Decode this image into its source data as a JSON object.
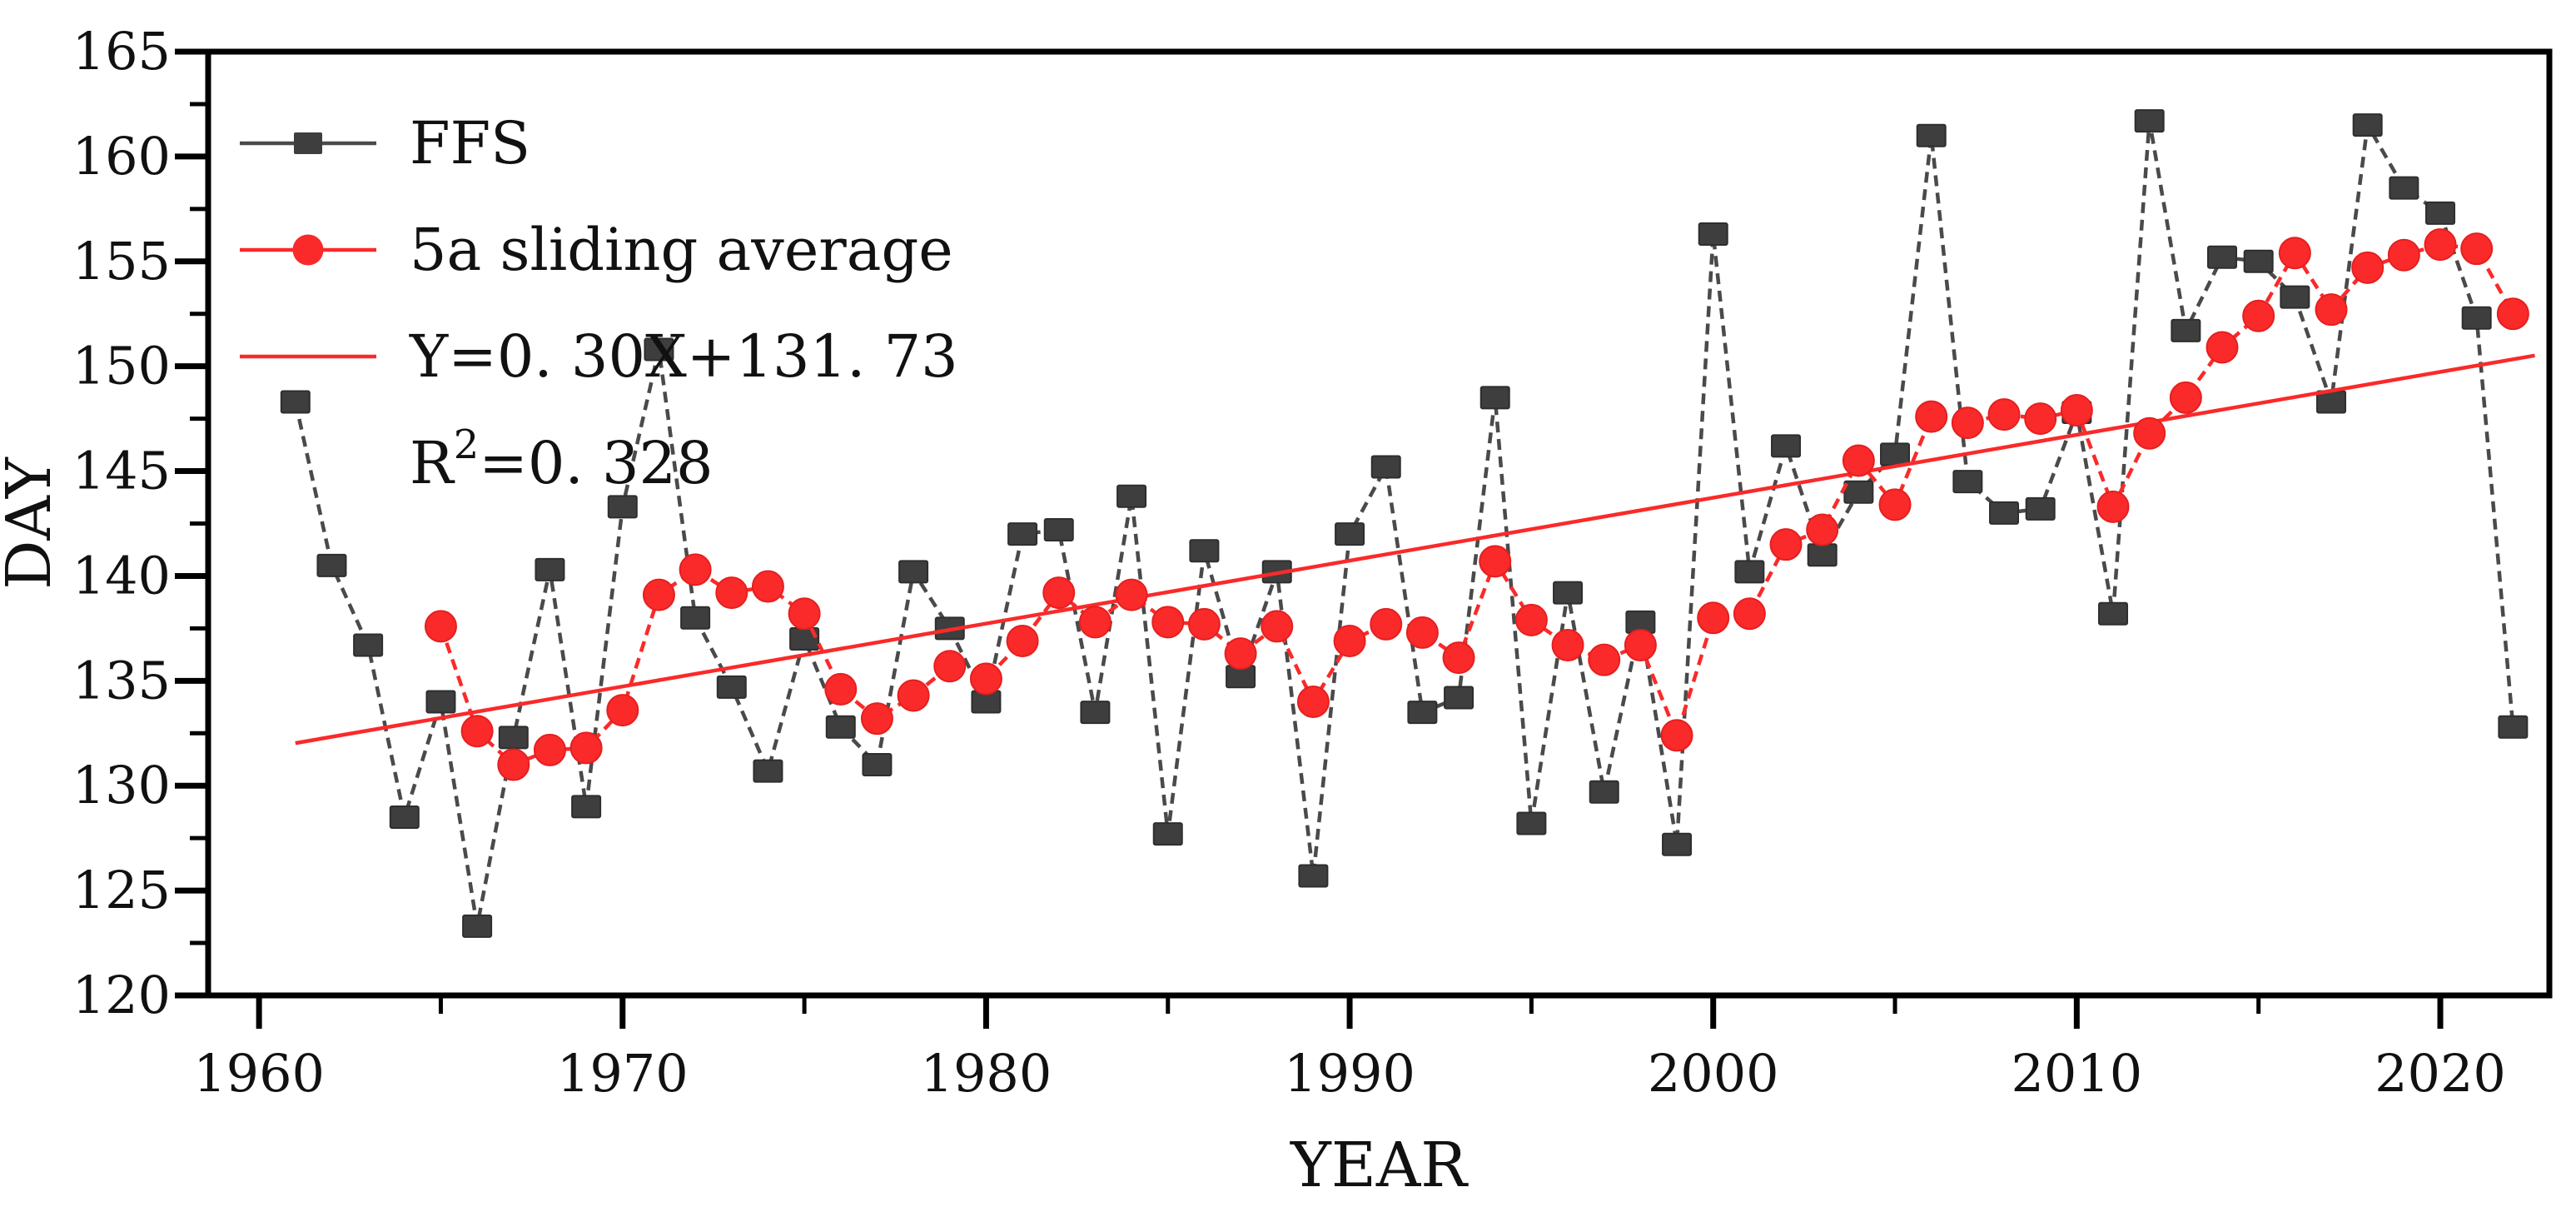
{
  "chart_data": {
    "type": "line",
    "title": "",
    "xlabel": "YEAR",
    "ylabel": "DAY",
    "xlim": [
      1958.6,
      2023.0
    ],
    "ylim": [
      120,
      165
    ],
    "grid": false,
    "legend_position": "upper-left",
    "x_major_ticks": [
      1960,
      1970,
      1980,
      1990,
      2000,
      2010,
      2020
    ],
    "x_minor_ticks": [
      1965,
      1975,
      1985,
      1995,
      2005,
      2015
    ],
    "y_major_ticks": [
      120,
      125,
      130,
      135,
      140,
      145,
      150,
      155,
      160,
      165
    ],
    "y_minor_ticks": [
      122.5,
      127.5,
      132.5,
      137.5,
      142.5,
      147.5,
      152.5,
      157.5,
      162.5
    ],
    "colors": {
      "ffs_marker": "#3e3e3e",
      "ffs_line": "#4a4a4a",
      "red": "#fa2a2a",
      "axis": "#000000",
      "text": "#111111"
    },
    "series": [
      {
        "name": "FFS",
        "kind": "line-marker",
        "marker": "square",
        "x": [
          1961,
          1962,
          1963,
          1964,
          1965,
          1966,
          1967,
          1968,
          1969,
          1970,
          1971,
          1972,
          1973,
          1974,
          1975,
          1976,
          1977,
          1978,
          1979,
          1980,
          1981,
          1982,
          1983,
          1984,
          1985,
          1986,
          1987,
          1988,
          1989,
          1990,
          1991,
          1992,
          1993,
          1994,
          1995,
          1996,
          1997,
          1998,
          1999,
          2000,
          2001,
          2002,
          2003,
          2004,
          2005,
          2006,
          2007,
          2008,
          2009,
          2010,
          2011,
          2012,
          2013,
          2014,
          2015,
          2016,
          2017,
          2018,
          2019,
          2020,
          2021,
          2022
        ],
        "values": [
          148.3,
          140.5,
          136.7,
          128.5,
          134.0,
          123.3,
          132.3,
          140.3,
          129.0,
          143.3,
          150.8,
          138.0,
          134.7,
          130.7,
          137.0,
          132.8,
          131.0,
          140.2,
          137.5,
          134.0,
          142.0,
          142.2,
          133.5,
          143.8,
          127.7,
          141.2,
          135.2,
          140.2,
          125.7,
          142.0,
          145.2,
          133.5,
          134.2,
          148.5,
          128.2,
          139.2,
          129.7,
          137.8,
          127.2,
          156.3,
          140.2,
          146.2,
          141.0,
          144.0,
          145.8,
          161.0,
          144.5,
          143.0,
          143.2,
          147.8,
          138.2,
          161.7,
          151.7,
          155.2,
          155.0,
          153.3,
          148.3,
          161.5,
          158.5,
          157.3,
          152.3,
          132.8
        ]
      },
      {
        "name": "5a sliding average",
        "kind": "line-marker",
        "marker": "circle",
        "x": [
          1965,
          1966,
          1967,
          1968,
          1969,
          1970,
          1971,
          1972,
          1973,
          1974,
          1975,
          1976,
          1977,
          1978,
          1979,
          1980,
          1981,
          1982,
          1983,
          1984,
          1985,
          1986,
          1987,
          1988,
          1989,
          1990,
          1991,
          1992,
          1993,
          1994,
          1995,
          1996,
          1997,
          1998,
          1999,
          2000,
          2001,
          2002,
          2003,
          2004,
          2005,
          2006,
          2007,
          2008,
          2009,
          2010,
          2011,
          2012,
          2013,
          2014,
          2015,
          2016,
          2017,
          2018,
          2019,
          2020,
          2021,
          2022
        ],
        "values": [
          137.6,
          132.6,
          131.0,
          131.7,
          131.8,
          133.6,
          139.1,
          140.3,
          139.2,
          139.5,
          138.2,
          134.6,
          133.2,
          134.3,
          135.7,
          135.1,
          136.9,
          139.2,
          137.8,
          139.1,
          137.8,
          137.7,
          136.3,
          137.6,
          134.0,
          136.9,
          137.7,
          137.3,
          136.1,
          140.7,
          137.9,
          136.7,
          136.0,
          136.7,
          132.4,
          138.0,
          138.2,
          141.5,
          142.2,
          145.5,
          143.4,
          147.6,
          147.3,
          147.7,
          147.5,
          147.9,
          143.3,
          146.8,
          148.5,
          150.9,
          152.4,
          155.4,
          152.7,
          154.7,
          155.3,
          155.8,
          155.6,
          152.5
        ]
      },
      {
        "name": "trend",
        "kind": "trend-line",
        "slope": 0.3,
        "intercept": 131.73,
        "x_base_year": 1960,
        "x_start": 1961.0,
        "x_end": 2022.6
      }
    ],
    "legend": {
      "items": [
        {
          "id": "ffs",
          "label": "FFS",
          "sample": "gray-line-square"
        },
        {
          "id": "sliding-average",
          "label": "5a sliding average",
          "sample": "red-line-circle"
        },
        {
          "id": "trend-equation",
          "label": "Y=0. 30X+131. 73",
          "sample": "red-line"
        },
        {
          "id": "r-squared",
          "label_base": "R",
          "label_sup": "2",
          "label_rest": "=0. 328",
          "sample": "none"
        }
      ]
    }
  }
}
